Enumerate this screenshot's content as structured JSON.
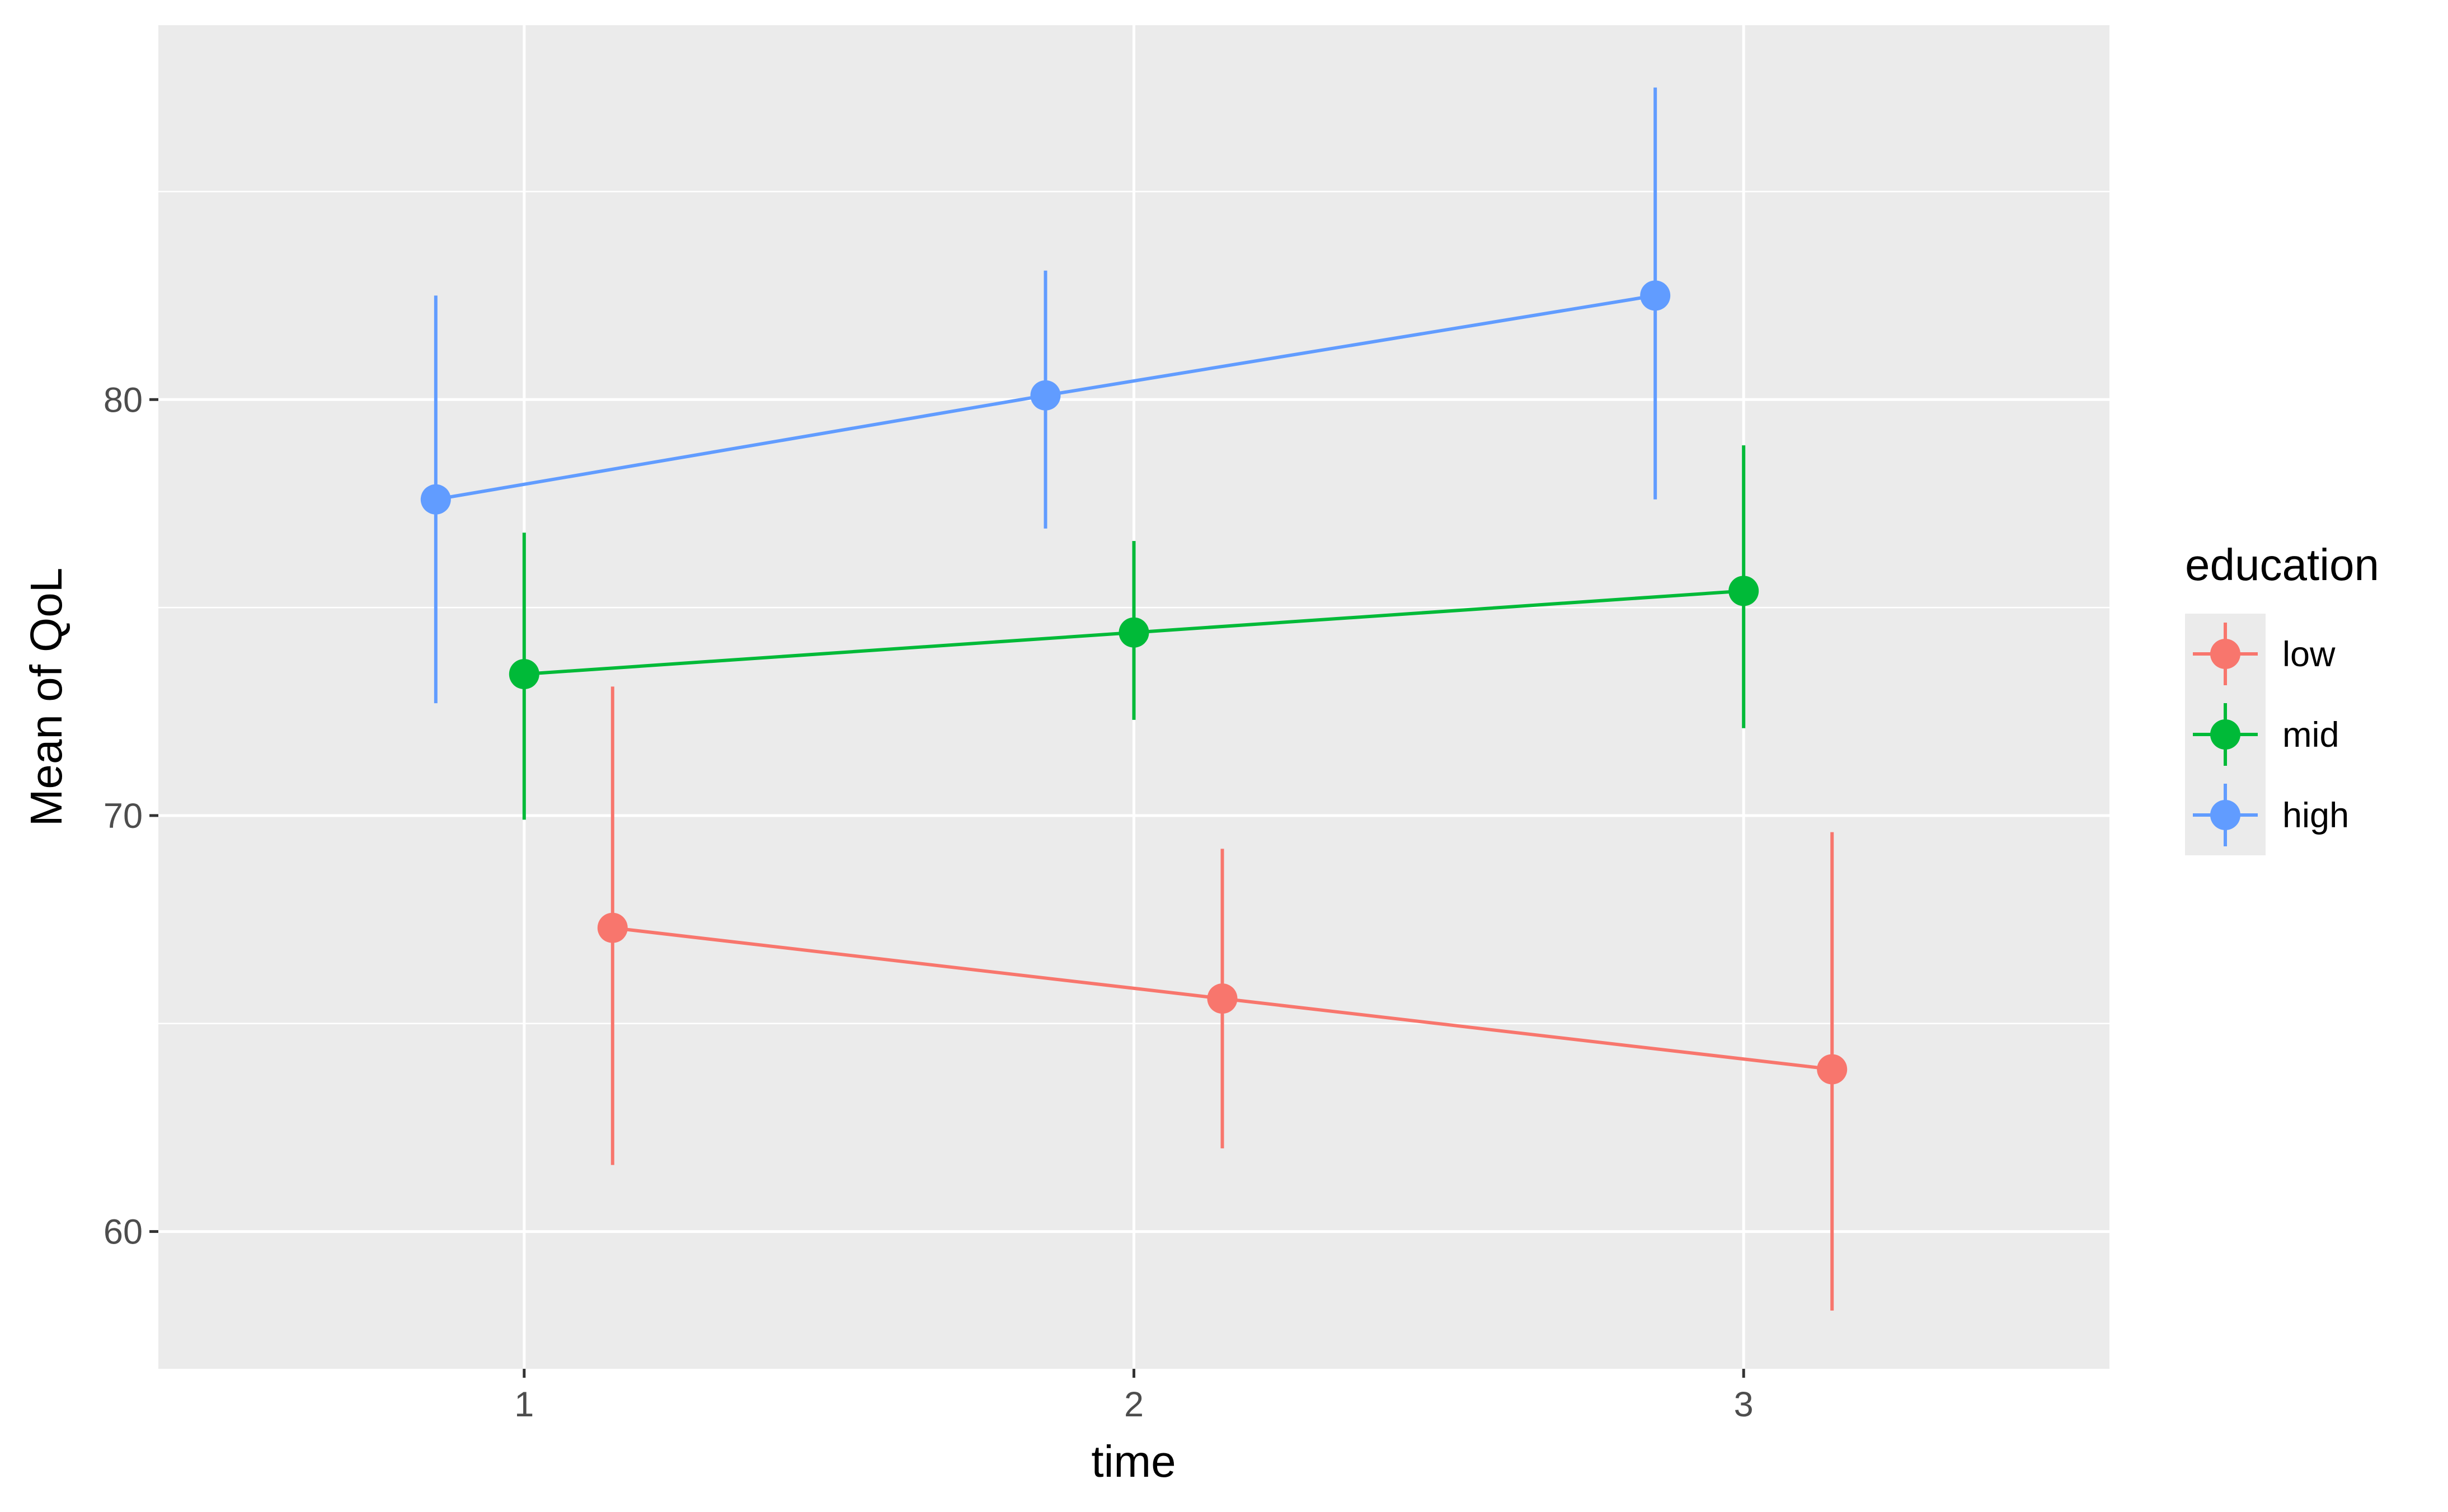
{
  "chart_data": {
    "type": "line",
    "xlabel": "time",
    "ylabel": "Mean of QoL",
    "x_ticks": [
      1,
      2,
      3
    ],
    "y_ticks": [
      60,
      70,
      80
    ],
    "xlim": [
      0.4,
      3.6
    ],
    "ylim": [
      56.7,
      89.0
    ],
    "grid": true,
    "legend": {
      "title": "education",
      "placement": "right"
    },
    "series": [
      {
        "name": "low",
        "color": "#F8766D",
        "x": [
          1,
          2,
          3
        ],
        "y": [
          67.3,
          65.6,
          63.9
        ],
        "ymin": [
          61.6,
          62.0,
          58.1
        ],
        "ymax": [
          73.1,
          69.2,
          69.6
        ]
      },
      {
        "name": "mid",
        "color": "#00BA38",
        "x": [
          1,
          2,
          3
        ],
        "y": [
          73.4,
          74.4,
          75.4
        ],
        "ymin": [
          69.9,
          72.3,
          72.1
        ],
        "ymax": [
          76.8,
          76.6,
          78.9
        ]
      },
      {
        "name": "high",
        "color": "#619CFF",
        "x": [
          1,
          2,
          3
        ],
        "y": [
          77.6,
          80.1,
          82.5
        ],
        "ymin": [
          72.7,
          76.9,
          77.6
        ],
        "ymax": [
          82.5,
          83.1,
          87.5
        ]
      }
    ]
  }
}
